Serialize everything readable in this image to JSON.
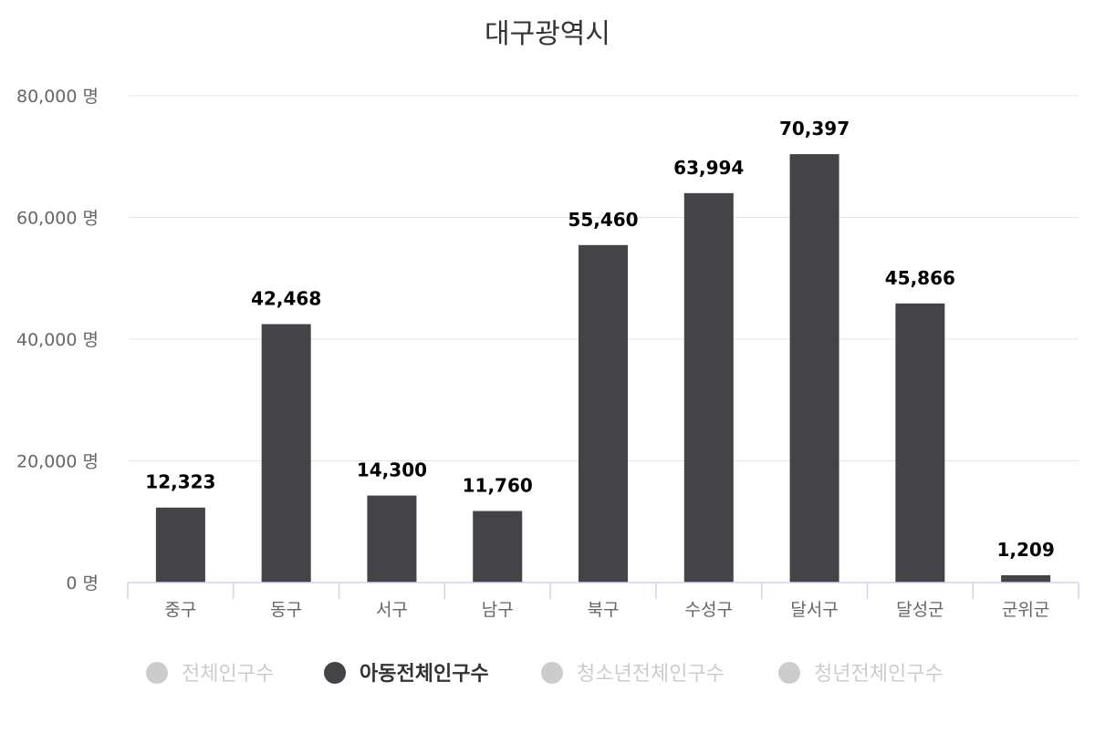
{
  "chart_data": {
    "type": "bar",
    "title": "대구광역시",
    "categories": [
      "중구",
      "동구",
      "서구",
      "남구",
      "북구",
      "수성구",
      "달서구",
      "달성군",
      "군위군"
    ],
    "series": [
      {
        "name": "아동전체인구수",
        "values": [
          12323,
          42468,
          14300,
          11760,
          55460,
          63994,
          70397,
          45866,
          1209
        ],
        "labels": [
          "12,323",
          "42,468",
          "14,300",
          "11,760",
          "55,460",
          "63,994",
          "70,397",
          "45,866",
          "1,209"
        ],
        "color": "#434348"
      }
    ],
    "yticks": [
      {
        "value": 0,
        "label": "0 명"
      },
      {
        "value": 20000,
        "label": "20,000 명"
      },
      {
        "value": 40000,
        "label": "40,000 명"
      },
      {
        "value": 60000,
        "label": "60,000 명"
      },
      {
        "value": 80000,
        "label": "80,000 명"
      }
    ],
    "ylim": [
      0,
      80000
    ],
    "grid": true,
    "legend": {
      "placement": "bottom",
      "items": [
        {
          "label": "전체인구수",
          "active": false
        },
        {
          "label": "아동전체인구수",
          "active": true
        },
        {
          "label": "청소년전체인구수",
          "active": false
        },
        {
          "label": "청년전체인구수",
          "active": false
        }
      ]
    },
    "colors": {
      "bar": "#434348",
      "grid": "#e6e6e6",
      "axis": "#ccd6eb",
      "legend_active_text": "#333333",
      "legend_inactive": "#cccccc"
    }
  }
}
